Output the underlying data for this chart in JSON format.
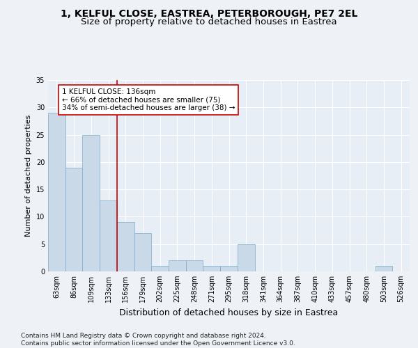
{
  "title1": "1, KELFUL CLOSE, EASTREA, PETERBOROUGH, PE7 2EL",
  "title2": "Size of property relative to detached houses in Eastrea",
  "xlabel": "Distribution of detached houses by size in Eastrea",
  "ylabel": "Number of detached properties",
  "categories": [
    "63sqm",
    "86sqm",
    "109sqm",
    "133sqm",
    "156sqm",
    "179sqm",
    "202sqm",
    "225sqm",
    "248sqm",
    "271sqm",
    "295sqm",
    "318sqm",
    "341sqm",
    "364sqm",
    "387sqm",
    "410sqm",
    "433sqm",
    "457sqm",
    "480sqm",
    "503sqm",
    "526sqm"
  ],
  "values": [
    29,
    19,
    25,
    13,
    9,
    7,
    1,
    2,
    2,
    1,
    1,
    5,
    0,
    0,
    0,
    0,
    0,
    0,
    0,
    1,
    0
  ],
  "bar_color": "#c9d9e8",
  "bar_edge_color": "#7aaac8",
  "vline_color": "#cc0000",
  "annotation_text": "1 KELFUL CLOSE: 136sqm\n← 66% of detached houses are smaller (75)\n34% of semi-detached houses are larger (38) →",
  "annotation_box_color": "#ffffff",
  "annotation_box_edge": "#cc0000",
  "ylim": [
    0,
    35
  ],
  "yticks": [
    0,
    5,
    10,
    15,
    20,
    25,
    30,
    35
  ],
  "bg_color": "#eef2f7",
  "plot_bg_color": "#e8eef5",
  "footer": "Contains HM Land Registry data © Crown copyright and database right 2024.\nContains public sector information licensed under the Open Government Licence v3.0.",
  "title1_fontsize": 10,
  "title2_fontsize": 9.5,
  "xlabel_fontsize": 9,
  "ylabel_fontsize": 8,
  "tick_fontsize": 7,
  "annotation_fontsize": 7.5,
  "footer_fontsize": 6.5
}
